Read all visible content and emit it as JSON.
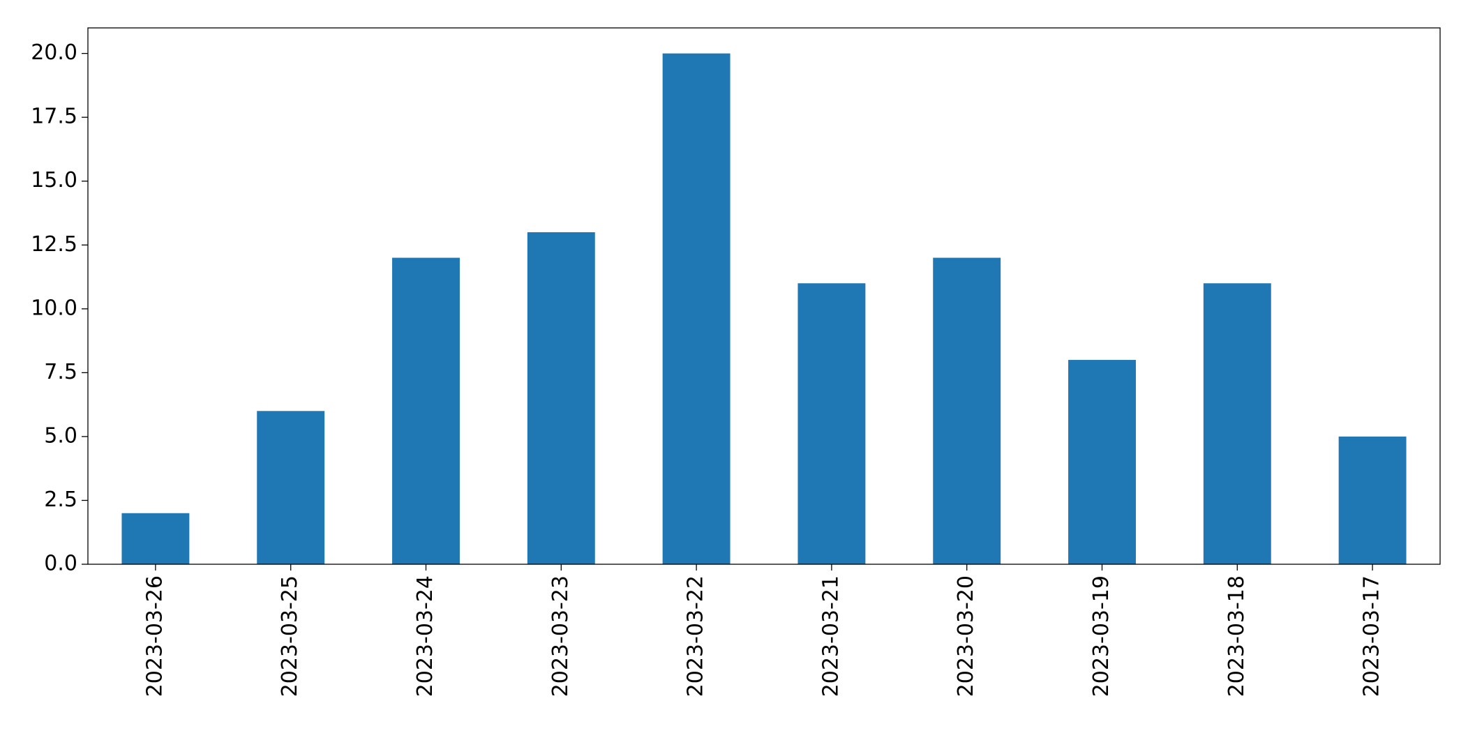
{
  "chart_data": {
    "type": "bar",
    "categories": [
      "2023-03-26",
      "2023-03-25",
      "2023-03-24",
      "2023-03-23",
      "2023-03-22",
      "2023-03-21",
      "2023-03-20",
      "2023-03-19",
      "2023-03-18",
      "2023-03-17"
    ],
    "values": [
      2,
      6,
      12,
      13,
      20,
      11,
      12,
      8,
      11,
      5
    ],
    "color": "#1f77b4",
    "ylim": [
      0,
      21
    ],
    "yticks": [
      {
        "value": 0,
        "label": "0.0"
      },
      {
        "value": 2.5,
        "label": "2.5"
      },
      {
        "value": 5,
        "label": "5.0"
      },
      {
        "value": 7.5,
        "label": "7.5"
      },
      {
        "value": 10,
        "label": "10.0"
      },
      {
        "value": 12.5,
        "label": "12.5"
      },
      {
        "value": 15,
        "label": "15.0"
      },
      {
        "value": 17.5,
        "label": "17.5"
      },
      {
        "value": 20,
        "label": "20.0"
      }
    ],
    "grid": false
  }
}
